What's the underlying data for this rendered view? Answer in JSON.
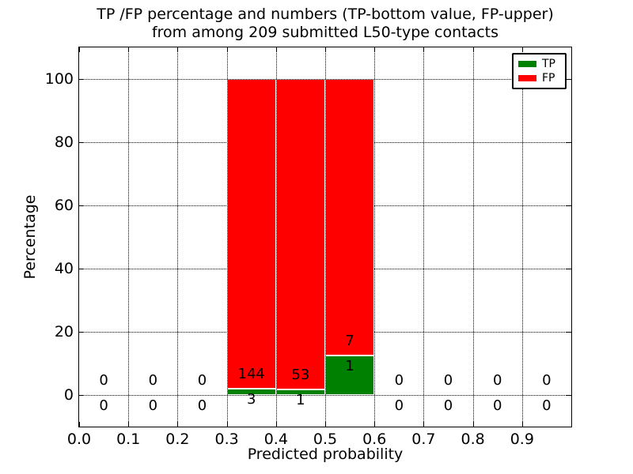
{
  "chart_data": {
    "type": "bar",
    "stacked": true,
    "title_lines": [
      "TP /FP percentage and numbers (TP-bottom value, FP-upper)",
      "from among 209 submitted L50-type contacts"
    ],
    "title": "TP /FP percentage and numbers (TP-bottom value, FP-upper)\nfrom among 209 submitted L50-type contacts",
    "xlabel": "Predicted probability",
    "ylabel": "Percentage",
    "xlim": [
      0.0,
      1.0
    ],
    "ylim": [
      -10,
      110
    ],
    "xtick_values": [
      0.0,
      0.1,
      0.2,
      0.3,
      0.4,
      0.5,
      0.6,
      0.7,
      0.8,
      0.9
    ],
    "xtick_labels": [
      "0.0",
      "0.1",
      "0.2",
      "0.3",
      "0.4",
      "0.5",
      "0.6",
      "0.7",
      "0.8",
      "0.9"
    ],
    "ytick_values": [
      0,
      20,
      40,
      60,
      80,
      100
    ],
    "ytick_labels": [
      "0",
      "20",
      "40",
      "60",
      "80",
      "100"
    ],
    "grid": {
      "on": true,
      "linestyle": "dotted",
      "color": "#000000"
    },
    "series": [
      {
        "name": "TP",
        "color": "#008000",
        "position": "bottom"
      },
      {
        "name": "FP",
        "color": "#ff0000",
        "position": "upper"
      }
    ],
    "legend": {
      "position": "upper right",
      "entries": [
        {
          "label": "TP",
          "color": "#008000"
        },
        {
          "label": "FP",
          "color": "#ff0000"
        }
      ]
    },
    "bin_width": 0.1,
    "bins": [
      {
        "x_range": [
          0.0,
          0.1
        ],
        "tp_count": 0,
        "fp_count": 0,
        "tp_pct": 0,
        "fp_pct": 0
      },
      {
        "x_range": [
          0.1,
          0.2
        ],
        "tp_count": 0,
        "fp_count": 0,
        "tp_pct": 0,
        "fp_pct": 0
      },
      {
        "x_range": [
          0.2,
          0.3
        ],
        "tp_count": 0,
        "fp_count": 0,
        "tp_pct": 0,
        "fp_pct": 0
      },
      {
        "x_range": [
          0.3,
          0.4
        ],
        "tp_count": 3,
        "fp_count": 144,
        "tp_pct": 2.04,
        "fp_pct": 97.96
      },
      {
        "x_range": [
          0.4,
          0.5
        ],
        "tp_count": 1,
        "fp_count": 53,
        "tp_pct": 1.85,
        "fp_pct": 98.15
      },
      {
        "x_range": [
          0.5,
          0.6
        ],
        "tp_count": 1,
        "fp_count": 7,
        "tp_pct": 12.5,
        "fp_pct": 87.5
      },
      {
        "x_range": [
          0.6,
          0.7
        ],
        "tp_count": 0,
        "fp_count": 0,
        "tp_pct": 0,
        "fp_pct": 0
      },
      {
        "x_range": [
          0.7,
          0.8
        ],
        "tp_count": 0,
        "fp_count": 0,
        "tp_pct": 0,
        "fp_pct": 0
      },
      {
        "x_range": [
          0.8,
          0.9
        ],
        "tp_count": 0,
        "fp_count": 0,
        "tp_pct": 0,
        "fp_pct": 0
      },
      {
        "x_range": [
          0.9,
          1.0
        ],
        "tp_count": 0,
        "fp_count": 0,
        "tp_pct": 0,
        "fp_pct": 0
      }
    ]
  }
}
